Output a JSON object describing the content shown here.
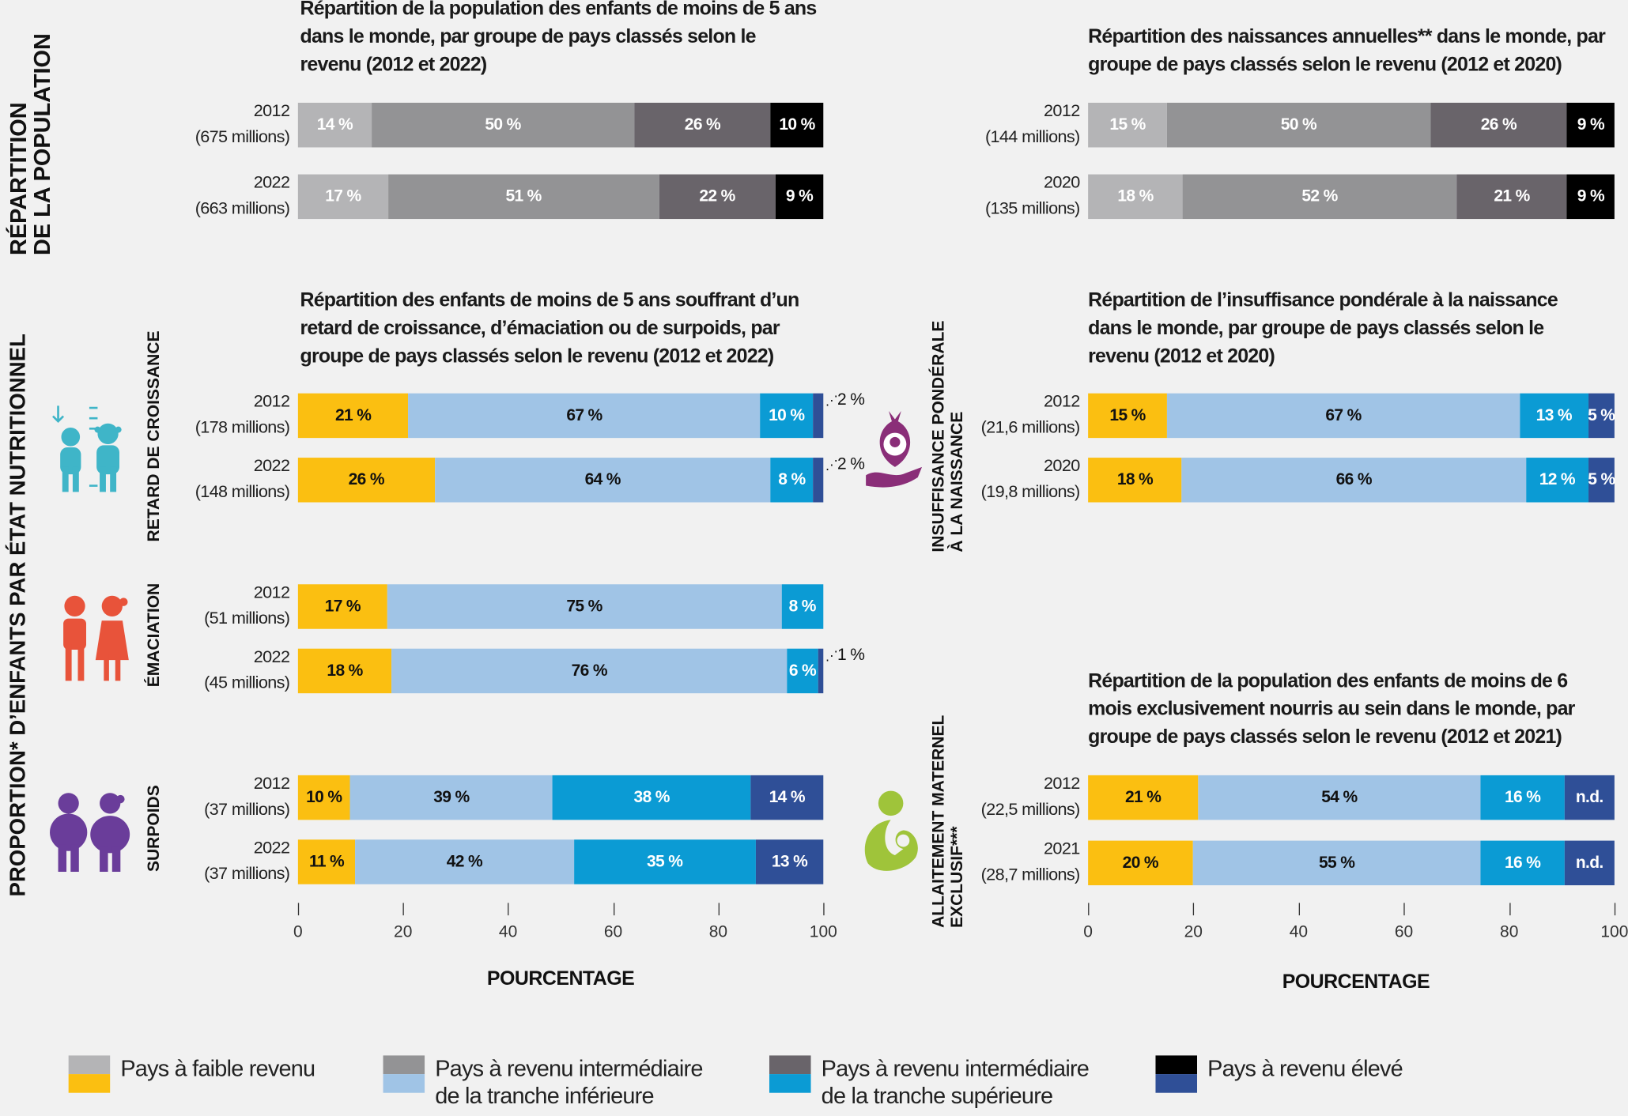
{
  "colors": {
    "gray": [
      "#b4b4b6",
      "#939395",
      "#69646a",
      "#000000"
    ],
    "color": [
      "#fbbf11",
      "#a0c4e6",
      "#0b9bd4",
      "#2f4f97"
    ],
    "text_gray": "#ffffff",
    "text_color": [
      "#111111",
      "#111111",
      "#ffffff",
      "#ffffff"
    ]
  },
  "side_labels": {
    "population": [
      "Répartition",
      "de la population"
    ],
    "nutrition": "Proportion* d’enfants par état nutritionnel",
    "stunting": "Retard de croissance",
    "wasting": "Émaciation",
    "overweight": "Surpoids",
    "lbw": [
      "Insuffisance pondérale",
      "à la naissance"
    ],
    "breastfeeding": [
      "Allaitement maternel",
      "exclusif***"
    ]
  },
  "icons": {
    "stunting": "children-height-icon",
    "wasting": "thin-children-icon",
    "overweight": "overweight-children-icon",
    "lbw": "baby-in-hand-icon",
    "breastfeeding": "breastfeeding-mother-icon"
  },
  "chart_data": [
    {
      "id": "pop_under5",
      "type": "bar",
      "stacked": true,
      "orientation": "horizontal",
      "palette": "gray",
      "title": "Répartition de la population des enfants de moins de 5 ans dans le monde, par groupe de pays classés selon le revenu (2012 et 2022)",
      "rows": [
        {
          "year": "2012",
          "total": "(675 millions)",
          "values": [
            14,
            50,
            26,
            10
          ],
          "labels": [
            "14 %",
            "50 %",
            "26 %",
            "10 %"
          ]
        },
        {
          "year": "2022",
          "total": "(663 millions)",
          "values": [
            17,
            51,
            22,
            9
          ],
          "labels": [
            "17 %",
            "51 %",
            "22 %",
            "9 %"
          ]
        }
      ]
    },
    {
      "id": "births",
      "type": "bar",
      "stacked": true,
      "orientation": "horizontal",
      "palette": "gray",
      "title": "Répartition des naissances annuelles** dans le monde, par groupe de pays classés selon le revenu (2012 et 2020)",
      "rows": [
        {
          "year": "2012",
          "total": "(144 millions)",
          "values": [
            15,
            50,
            26,
            9
          ],
          "labels": [
            "15 %",
            "50 %",
            "26 %",
            "9 %"
          ]
        },
        {
          "year": "2020",
          "total": "(135 millions)",
          "values": [
            18,
            52,
            21,
            9
          ],
          "labels": [
            "18 %",
            "52 %",
            "21 %",
            "9 %"
          ]
        }
      ]
    },
    {
      "id": "nutrition",
      "type": "bar",
      "stacked": true,
      "orientation": "horizontal",
      "palette": "color",
      "title": "Répartition des enfants de moins de 5 ans souffrant d’un retard de croissance, d’émaciation ou de surpoids, par groupe de pays classés selon le revenu (2012 et 2022)",
      "xlabel": "POURCENTAGE",
      "xlim": [
        0,
        100
      ],
      "xticks": [
        "0",
        "20",
        "40",
        "60",
        "80",
        "100"
      ],
      "rows": [
        {
          "group": "Retard de croissance",
          "year": "2012",
          "total": "(178 millions)",
          "values": [
            21,
            67,
            10,
            2
          ],
          "labels": [
            "21 %",
            "67 %",
            "10 %",
            ""
          ],
          "outside": "2 %"
        },
        {
          "group": "Retard de croissance",
          "year": "2022",
          "total": "(148 millions)",
          "values": [
            26,
            64,
            8,
            2
          ],
          "labels": [
            "26 %",
            "64 %",
            "8 %",
            ""
          ],
          "outside": "2 %"
        },
        {
          "group": "Émaciation",
          "year": "2012",
          "total": "(51 millions)",
          "values": [
            17,
            75,
            8,
            0
          ],
          "labels": [
            "17 %",
            "75 %",
            "8 %",
            ""
          ]
        },
        {
          "group": "Émaciation",
          "year": "2022",
          "total": "(45 millions)",
          "values": [
            18,
            76,
            6,
            1
          ],
          "labels": [
            "18 %",
            "76 %",
            "6 %",
            ""
          ],
          "outside": "1 %"
        },
        {
          "group": "Surpoids",
          "year": "2012",
          "total": "(37 millions)",
          "values": [
            10,
            39,
            38,
            14
          ],
          "labels": [
            "10 %",
            "39 %",
            "38 %",
            "14 %"
          ]
        },
        {
          "group": "Surpoids",
          "year": "2022",
          "total": "(37 millions)",
          "values": [
            11,
            42,
            35,
            13
          ],
          "labels": [
            "11 %",
            "42 %",
            "35 %",
            "13 %"
          ]
        }
      ]
    },
    {
      "id": "low_birth_weight",
      "type": "bar",
      "stacked": true,
      "orientation": "horizontal",
      "palette": "color",
      "title": "Répartition de l’insuffisance pondérale à la naissance dans le monde, par groupe de pays classés selon le revenu (2012 et 2020)",
      "rows": [
        {
          "year": "2012",
          "total": "(21,6 millions)",
          "values": [
            15,
            67,
            13,
            5
          ],
          "labels": [
            "15 %",
            "67 %",
            "13 %",
            "5 %"
          ]
        },
        {
          "year": "2020",
          "total": "(19,8 millions)",
          "values": [
            18,
            66,
            12,
            5
          ],
          "labels": [
            "18 %",
            "66 %",
            "12 %",
            "5 %"
          ]
        }
      ]
    },
    {
      "id": "breastfeeding",
      "type": "bar",
      "stacked": true,
      "orientation": "horizontal",
      "palette": "color",
      "title": "Répartition de la population des enfants de moins de 6 mois exclusivement nourris au sein dans le monde, par groupe de pays classés selon le revenu (2012 et 2021)",
      "xlabel": "POURCENTAGE",
      "xlim": [
        0,
        100
      ],
      "xticks": [
        "0",
        "20",
        "40",
        "60",
        "80",
        "100"
      ],
      "rows": [
        {
          "year": "2012",
          "total": "(22,5 millions)",
          "values": [
            21,
            54,
            16,
            null
          ],
          "labels": [
            "21 %",
            "54 %",
            "16 %",
            "n.d."
          ]
        },
        {
          "year": "2021",
          "total": "(28,7 millions)",
          "values": [
            20,
            55,
            16,
            null
          ],
          "labels": [
            "20 %",
            "55 %",
            "16 %",
            "n.d."
          ]
        }
      ]
    }
  ],
  "legend": [
    {
      "label": [
        "Pays à faible revenu"
      ]
    },
    {
      "label": [
        "Pays à revenu intermédiaire",
        "de la tranche inférieure"
      ]
    },
    {
      "label": [
        "Pays à revenu intermédiaire",
        "de la tranche supérieure"
      ]
    },
    {
      "label": [
        "Pays à revenu élevé"
      ]
    }
  ]
}
